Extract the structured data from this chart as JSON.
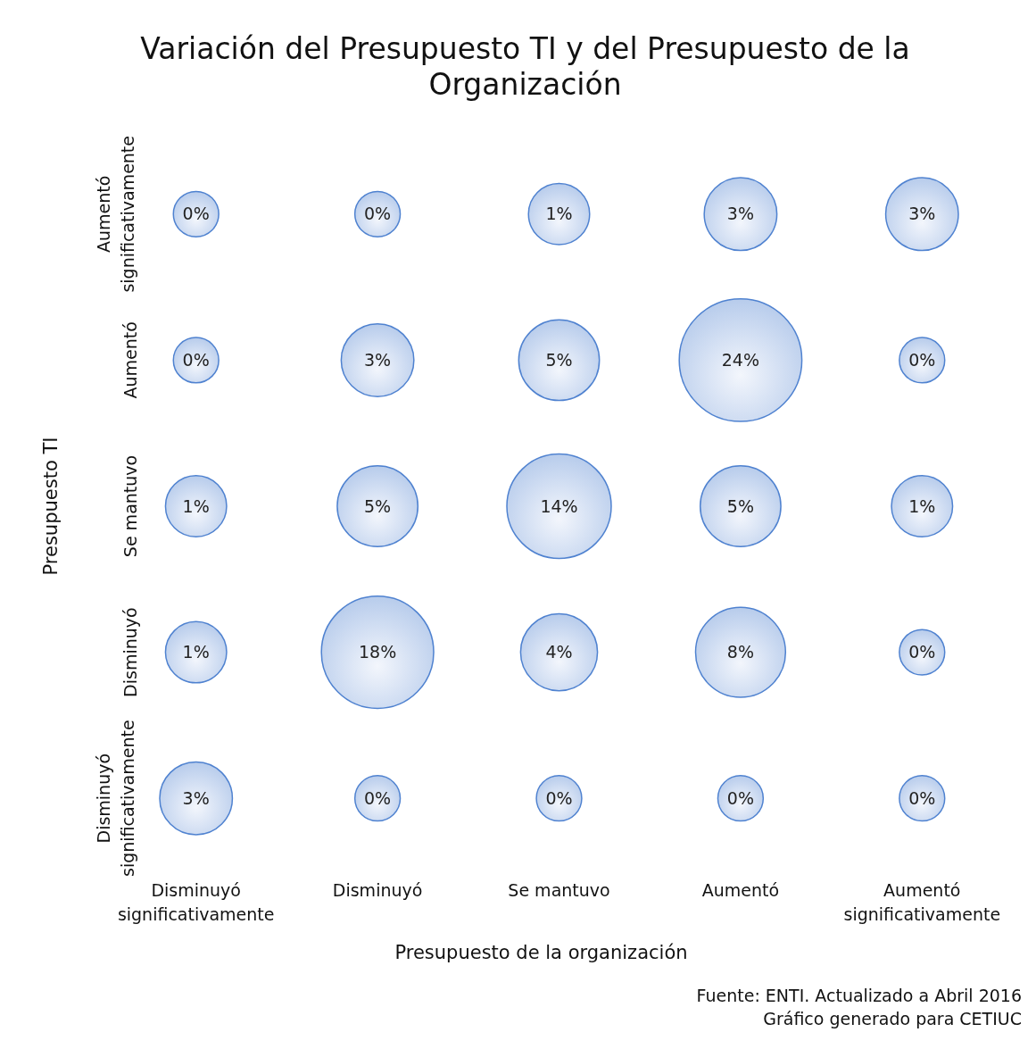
{
  "chart_data": {
    "type": "heatmap",
    "title": "Variación del Presupuesto TI y del Presupuesto de la Organización",
    "xlabel": "Presupuesto de la organización",
    "ylabel": "Presupuesto TI",
    "color": "#4f82d0",
    "categories": [
      "Disminuyó significativamente",
      "Disminuyó",
      "Se mantuvo",
      "Aumentó",
      "Aumentó significativamente"
    ],
    "y_categories": [
      "Aumentó significativamente",
      "Aumentó",
      "Se mantuvo",
      "Disminuyó",
      "Disminuyó significativamente"
    ],
    "cells": [
      [
        0,
        0,
        1,
        3,
        3
      ],
      [
        0,
        3,
        5,
        24,
        0
      ],
      [
        1,
        5,
        14,
        5,
        1
      ],
      [
        1,
        18,
        4,
        8,
        0
      ],
      [
        3,
        0,
        0,
        0,
        0
      ]
    ],
    "cell_labels": [
      [
        "0%",
        "0%",
        "1%",
        "3%",
        "3%"
      ],
      [
        "0%",
        "3%",
        "5%",
        "24%",
        "0%"
      ],
      [
        "1%",
        "5%",
        "14%",
        "5%",
        "1%"
      ],
      [
        "1%",
        "18%",
        "4%",
        "8%",
        "0%"
      ],
      [
        "3%",
        "0%",
        "0%",
        "0%",
        "0%"
      ]
    ],
    "annotations": [
      "Fuente: ENTI. Actualizado a Abril 2016",
      "Gráfico generado para CETIUC"
    ]
  }
}
